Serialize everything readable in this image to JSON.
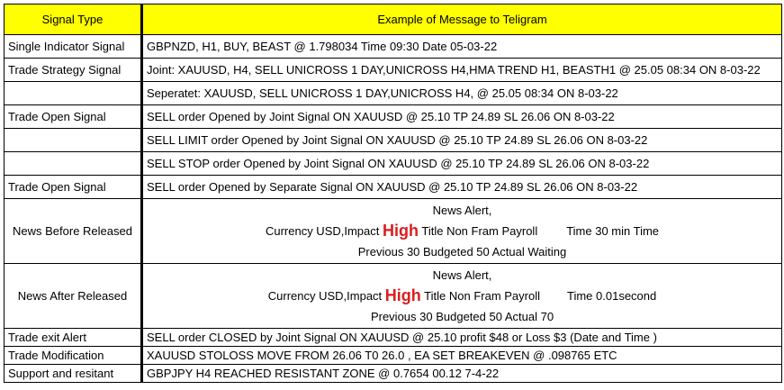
{
  "header": {
    "col_type": "Signal Type",
    "col_example": "Example of Message to Teligram"
  },
  "rows": [
    {
      "type": "Single Indicator Signal",
      "message": "GBPNZD, H1, BUY, BEAST  @  1.798034 Time 09:30 Date 05-03-22"
    },
    {
      "type": "Trade  Strategy Signal",
      "message": "Joint: XAUUSD, H4, SELL  UNICROSS 1 DAY,UNICROSS H4,HMA TREND H1, BEASTH1 @ 25.05 08:34  ON 8-03-22"
    },
    {
      "type": "",
      "message": "Seperatet: XAUUSD,  SELL  UNICROSS 1 DAY,UNICROSS H4, @ 25.05 08:34  ON 8-03-22"
    },
    {
      "type": "Trade Open Signal",
      "message": "SELL order Opened by Joint Signal  ON XAUUSD @ 25.10 TP 24.89 SL 26.06  ON 8-03-22"
    },
    {
      "type": "",
      "message": "SELL LIMIT  order Opened by Joint Signal  ON XAUUSD @ 25.10 TP 24.89 SL 26.06  ON 8-03-22"
    },
    {
      "type": "",
      "message": "SELL  STOP order Opened by Joint Signal  ON XAUUSD @ 25.10 TP 24.89 SL 26.06  ON 8-03-22"
    },
    {
      "type": "Trade Open Signal",
      "message": "SELL order Opened by Separate  Signal  ON XAUUSD @ 25.10 TP 24.89 SL 26.06  ON 8-03-22"
    }
  ],
  "news_before": {
    "type": "News Before Released",
    "line1": "News Alert,",
    "line2_pre": "Currency USD,Impact ",
    "impact": "High",
    "line2_post": " Title Non Fram Payroll",
    "time": "Time 30 min Time",
    "line3": "Previous 30 Budgeted 50  Actual Waiting"
  },
  "news_after": {
    "type": "News After Released",
    "line1": "News Alert,",
    "line2_pre": "Currency USD,Impact ",
    "impact": "High",
    "line2_post": " Title Non Fram Payroll",
    "time": "Time 0.01second",
    "line3": "Previous 30 Budgeted 50  Actual 70"
  },
  "bottom_rows": [
    {
      "type": "Trade exit Alert",
      "message": "SELL order  CLOSED  by Joint Signal  ON XAUUSD @ 25.10  profit $48 or Loss $3 (Date and Time )"
    },
    {
      "type": "Trade Modification",
      "message": "XAUUSD STOLOSS MOVE FROM 26.06 T0 26.0 , EA SET BREAKEVEN @ .098765 ETC"
    },
    {
      "type": "Support and resitant",
      "message": "GBPJPY H4 REACHED RESISTANT ZONE @ 0.7654 00.12 7-4-22"
    }
  ],
  "colors": {
    "header_bg": "#FFFF00",
    "high_text": "#D91E1E"
  }
}
